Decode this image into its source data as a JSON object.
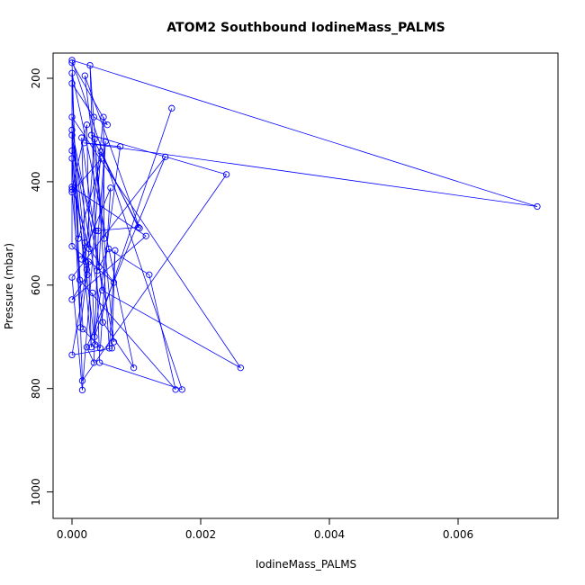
{
  "chart_data": {
    "type": "line",
    "title": "ATOM2 Southbound IodineMass_PALMS",
    "xlabel": "IodineMass_PALMS",
    "ylabel": "Pressure (mbar)",
    "xlim": [
      0,
      0.0075
    ],
    "ylim": [
      1050,
      160
    ],
    "y_reversed": true,
    "grid": false,
    "line_color": "#0000ff",
    "marker": "open-circle",
    "x_ticks": [
      {
        "value": 0.0,
        "label": "0.000"
      },
      {
        "value": 0.002,
        "label": "0.002"
      },
      {
        "value": 0.004,
        "label": "0.004"
      },
      {
        "value": 0.006,
        "label": "0.006"
      }
    ],
    "y_ticks": [
      {
        "value": 200,
        "label": "200"
      },
      {
        "value": 400,
        "label": "400"
      },
      {
        "value": 600,
        "label": "600"
      },
      {
        "value": 800,
        "label": "800"
      },
      {
        "value": 1000,
        "label": "1000"
      }
    ],
    "series": [
      {
        "points": [
          [
            0.0,
            165
          ],
          [
            0.0,
            170
          ],
          [
            0.0,
            190
          ],
          [
            0.0,
            210
          ],
          [
            0.0,
            275
          ],
          [
            0.0,
            300
          ],
          [
            0.0,
            310
          ],
          [
            0.0,
            340
          ],
          [
            0.0,
            355
          ],
          [
            0.0,
            410
          ],
          [
            0.0,
            415
          ],
          [
            0.0,
            420
          ],
          [
            0.0,
            525
          ],
          [
            0.0,
            585
          ],
          [
            0.0,
            628
          ],
          [
            0.0,
            735
          ],
          [
            0.0001,
            510
          ],
          [
            0.00012,
            590
          ],
          [
            0.00013,
            682
          ],
          [
            0.00015,
            315
          ],
          [
            0.00015,
            550
          ],
          [
            0.00016,
            785
          ],
          [
            0.00016,
            803
          ],
          [
            0.00017,
            685
          ],
          [
            0.00019,
            325
          ],
          [
            0.0002,
            195
          ],
          [
            0.0002,
            518
          ],
          [
            0.00021,
            554
          ],
          [
            0.00023,
            290
          ],
          [
            0.00023,
            720
          ],
          [
            0.00023,
            570
          ],
          [
            0.00024,
            580
          ],
          [
            0.00026,
            555
          ],
          [
            0.00027,
            530
          ],
          [
            0.00028,
            175
          ],
          [
            0.0003,
            310
          ],
          [
            0.0003,
            720
          ],
          [
            0.00032,
            615
          ],
          [
            0.00034,
            275
          ],
          [
            0.00034,
            750
          ],
          [
            0.00035,
            318
          ],
          [
            0.00035,
            700
          ],
          [
            0.00036,
            715
          ],
          [
            0.00037,
            495
          ],
          [
            0.00039,
            572
          ],
          [
            0.00041,
            495
          ],
          [
            0.00042,
            565
          ],
          [
            0.00043,
            750
          ],
          [
            0.00044,
            722
          ],
          [
            0.00045,
            342
          ],
          [
            0.00046,
            355
          ],
          [
            0.00047,
            610
          ],
          [
            0.00048,
            672
          ],
          [
            0.00049,
            275
          ],
          [
            0.0005,
            510
          ],
          [
            0.00052,
            322
          ],
          [
            0.00055,
            290
          ],
          [
            0.00057,
            530
          ],
          [
            0.00058,
            722
          ],
          [
            0.0006,
            412
          ],
          [
            0.00062,
            722
          ],
          [
            0.00065,
            710
          ],
          [
            0.00065,
            595
          ],
          [
            0.00067,
            533
          ],
          [
            0.00075,
            332
          ],
          [
            0.00096,
            760
          ],
          [
            0.00103,
            488
          ],
          [
            0.00105,
            490
          ],
          [
            0.00115,
            505
          ],
          [
            0.0012,
            580
          ],
          [
            0.00145,
            352
          ],
          [
            0.00155,
            258
          ],
          [
            0.00161,
            802
          ],
          [
            0.00171,
            802
          ],
          [
            0.0024,
            386
          ],
          [
            0.00262,
            760
          ],
          [
            0.00723,
            448
          ]
        ]
      }
    ]
  }
}
